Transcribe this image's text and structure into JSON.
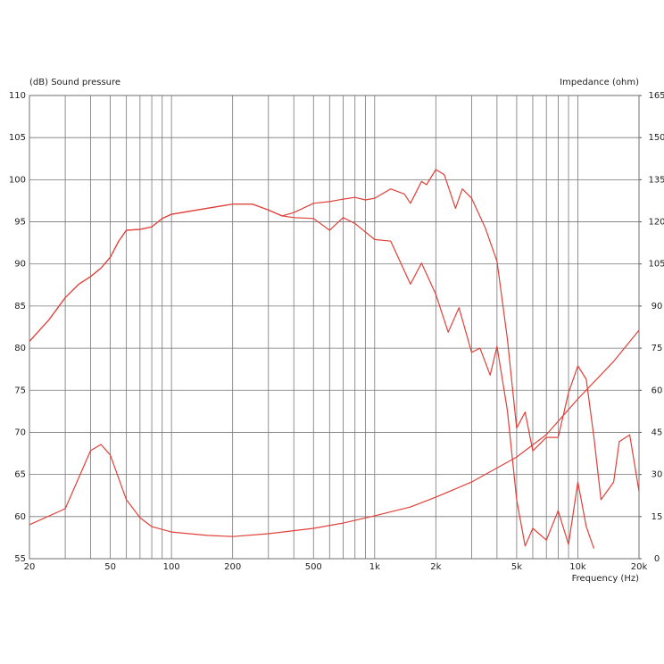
{
  "chart_data": {
    "type": "line",
    "y_label": "(dB)  Sound pressure",
    "y2_label": "Impedance (ohm)",
    "x_label": "Frequency  (Hz)",
    "xscale": "log",
    "xlim": [
      20,
      20000
    ],
    "xticks": [
      20,
      50,
      100,
      200,
      500,
      {
        "value": 1000,
        "label": "1k"
      },
      {
        "value": 2000,
        "label": "2k"
      },
      {
        "value": 5000,
        "label": "5k"
      },
      {
        "value": 10000,
        "label": "10k"
      },
      {
        "value": 20000,
        "label": "20k"
      }
    ],
    "xminor": [
      30,
      40,
      60,
      70,
      80,
      90,
      300,
      400,
      600,
      700,
      800,
      900,
      3000,
      4000,
      6000,
      7000,
      8000,
      9000
    ],
    "ylim": [
      55,
      110
    ],
    "yticks": [
      55,
      60,
      65,
      70,
      75,
      80,
      85,
      90,
      95,
      100,
      105,
      110
    ],
    "y2lim": [
      0,
      165
    ],
    "y2ticks": [
      0,
      15,
      30,
      45,
      60,
      75,
      90,
      105,
      120,
      135,
      150,
      165
    ],
    "grid": true,
    "series": [
      {
        "color": "#e0403a",
        "x": [
          20,
          25,
          30,
          35,
          40,
          45,
          50,
          55,
          60,
          70,
          80,
          90,
          100,
          150,
          200,
          250,
          300,
          350,
          400,
          500,
          600,
          700,
          800,
          900,
          1000,
          1200,
          1400,
          1500,
          1700,
          1800,
          2000,
          2200,
          2500,
          2700,
          3000,
          3500,
          4000,
          4500,
          5000,
          5500,
          6000,
          7000,
          8000,
          9000,
          10000,
          11000,
          12000,
          13000,
          15000,
          16000,
          18000,
          20000
        ],
        "values": [
          80.8,
          83.4,
          86,
          87.6,
          88.5,
          89.5,
          90.8,
          92.7,
          94,
          94.1,
          94.4,
          95.4,
          95.9,
          96.6,
          97.1,
          97.1,
          96.4,
          95.7,
          96.1,
          97.2,
          97.4,
          97.7,
          97.9,
          97.6,
          97.8,
          98.9,
          98.3,
          97.2,
          99.8,
          99.4,
          101.2,
          100.6,
          96.6,
          98.9,
          97.8,
          94.3,
          90.3,
          81.1,
          70.5,
          72.4,
          67.8,
          69.4,
          69.4,
          74.7,
          77.9,
          76.3,
          69.4,
          62,
          64.1,
          68.9,
          69.7,
          63
        ]
      },
      {
        "color": "#e0403a",
        "x": [
          20,
          25,
          30,
          35,
          40,
          45,
          50,
          55,
          60,
          70,
          80,
          90,
          100,
          150,
          200,
          250,
          300,
          350,
          400,
          500,
          600,
          700,
          800,
          1000,
          1200,
          1500,
          1700,
          2000,
          2300,
          2600,
          3000,
          3300,
          3700,
          4000,
          4500,
          5000,
          5500,
          6000,
          7000,
          8000,
          9000,
          10000,
          11000,
          12000
        ],
        "values": [
          80.8,
          83.4,
          86,
          87.6,
          88.5,
          89.5,
          90.8,
          92.7,
          94,
          94.1,
          94.4,
          95.4,
          95.9,
          96.6,
          97.1,
          97.1,
          96.4,
          95.7,
          95.5,
          95.4,
          94,
          95.5,
          94.8,
          92.9,
          92.7,
          87.6,
          90.1,
          86.4,
          81.9,
          84.8,
          79.5,
          80,
          76.8,
          80.2,
          72.6,
          62,
          56.5,
          58.6,
          57.2,
          60.7,
          56.7,
          64.1,
          58.8,
          56.2
        ]
      },
      {
        "color": "#e0403a",
        "axis": "y2",
        "x": [
          20,
          30,
          40,
          45,
          50,
          60,
          70,
          80,
          100,
          150,
          200,
          300,
          500,
          700,
          1000,
          1500,
          2000,
          3000,
          5000,
          7000,
          10000,
          15000,
          20000
        ],
        "values": [
          12.1,
          17.8,
          38.5,
          40.7,
          36.9,
          21,
          14.6,
          11.4,
          9.5,
          8.3,
          7.9,
          8.9,
          10.8,
          12.7,
          15.3,
          18.4,
          21.9,
          27.3,
          36.2,
          44.2,
          56.9,
          70.3,
          81.4
        ]
      }
    ]
  }
}
